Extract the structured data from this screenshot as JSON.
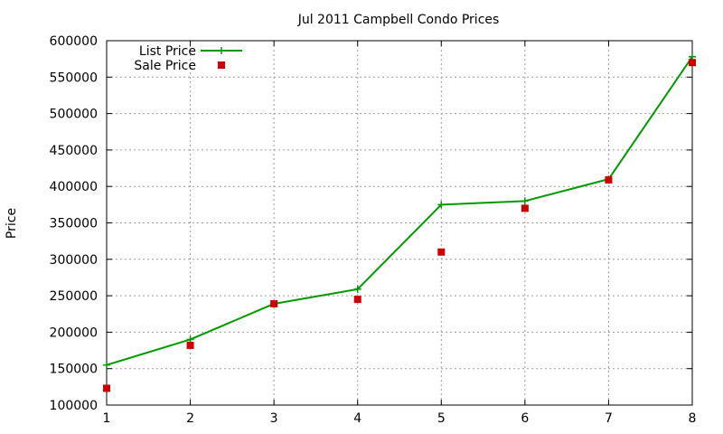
{
  "chart_data": {
    "type": "line",
    "title": "Jul 2011 Campbell Condo Prices",
    "xlabel": "",
    "ylabel": "Price",
    "xlim": [
      1,
      8
    ],
    "ylim": [
      100000,
      600000
    ],
    "x_ticks": [
      "1",
      "2",
      "3",
      "4",
      "5",
      "6",
      "7",
      "8"
    ],
    "y_ticks": [
      "100000",
      "150000",
      "200000",
      "250000",
      "300000",
      "350000",
      "400000",
      "450000",
      "500000",
      "550000",
      "600000"
    ],
    "grid": true,
    "legend_position": "top-left",
    "series": [
      {
        "name": "List Price",
        "style": "line+cross",
        "color": "#009900",
        "x": [
          1,
          2,
          3,
          4,
          5,
          6,
          7,
          8
        ],
        "values": [
          155000,
          190000,
          239000,
          259000,
          375000,
          380000,
          410000,
          578000
        ]
      },
      {
        "name": "Sale Price",
        "style": "square-markers",
        "color": "#cc0000",
        "x": [
          1,
          2,
          3,
          4,
          5,
          6,
          7,
          8
        ],
        "values": [
          123000,
          182000,
          239000,
          245000,
          310000,
          370000,
          409000,
          570000
        ]
      }
    ]
  }
}
